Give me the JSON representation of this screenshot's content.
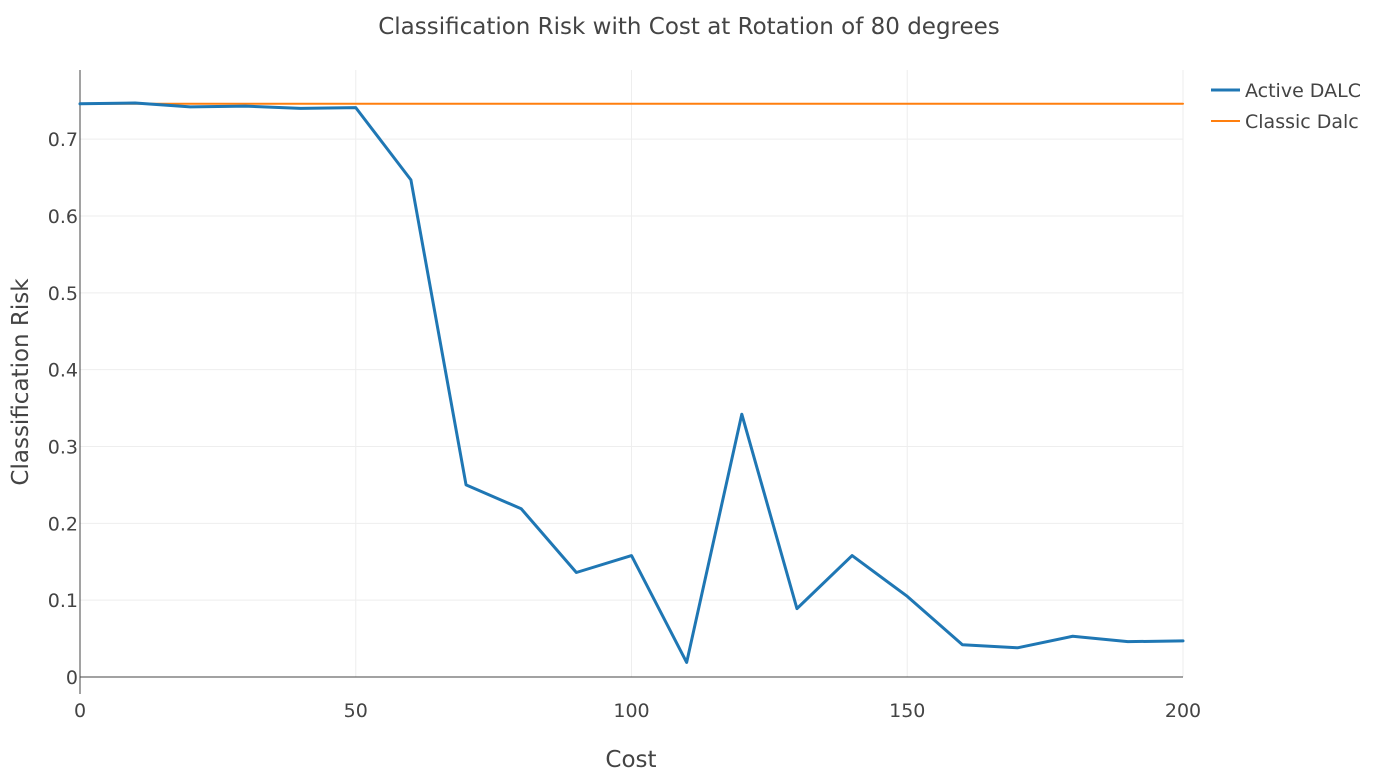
{
  "chart_data": {
    "type": "line",
    "title": "Classification Risk with Cost at Rotation of 80 degrees",
    "xlabel": "Cost",
    "ylabel": "Classification Risk",
    "xlim": [
      0,
      200
    ],
    "ylim": [
      0,
      0.79
    ],
    "x_ticks": [
      0,
      50,
      100,
      150,
      200
    ],
    "y_ticks": [
      0,
      0.1,
      0.2,
      0.3,
      0.4,
      0.5,
      0.6,
      0.7
    ],
    "x_tick_labels": [
      "0",
      "50",
      "100",
      "150",
      "200"
    ],
    "y_tick_labels": [
      "0",
      "0.1",
      "0.2",
      "0.3",
      "0.4",
      "0.5",
      "0.6",
      "0.7"
    ],
    "grid": true,
    "legend_position": "top-right",
    "series": [
      {
        "name": "Active DALC",
        "color": "#1f77b4",
        "x": [
          0,
          10,
          20,
          30,
          40,
          50,
          60,
          70,
          80,
          90,
          100,
          110,
          120,
          130,
          140,
          150,
          160,
          170,
          180,
          190,
          200
        ],
        "y": [
          0.746,
          0.747,
          0.742,
          0.743,
          0.74,
          0.741,
          0.647,
          0.25,
          0.219,
          0.136,
          0.158,
          0.019,
          0.342,
          0.089,
          0.158,
          0.105,
          0.042,
          0.038,
          0.053,
          0.046,
          0.047
        ]
      },
      {
        "name": "Classic Dalc",
        "color": "#ff7f0e",
        "x": [
          0,
          200
        ],
        "y": [
          0.746,
          0.746
        ]
      }
    ]
  }
}
